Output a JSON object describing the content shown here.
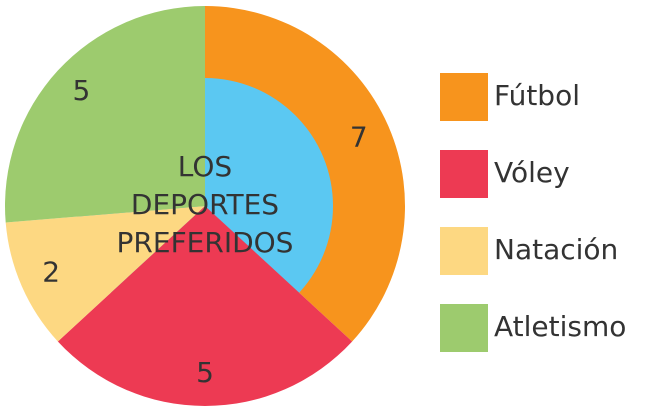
{
  "chart_data": {
    "type": "donut",
    "title_lines": [
      "LOS",
      "DEPORTES",
      "PREFERIDOS"
    ],
    "categories": [
      "Fútbol",
      "Vóley",
      "Natación",
      "Atletismo"
    ],
    "values": [
      7,
      5,
      2,
      5
    ],
    "colors": [
      "#f7941d",
      "#ed3a53",
      "#fdd882",
      "#9dcb6e"
    ],
    "center_color": "#5bc8f2",
    "legend": "right"
  }
}
